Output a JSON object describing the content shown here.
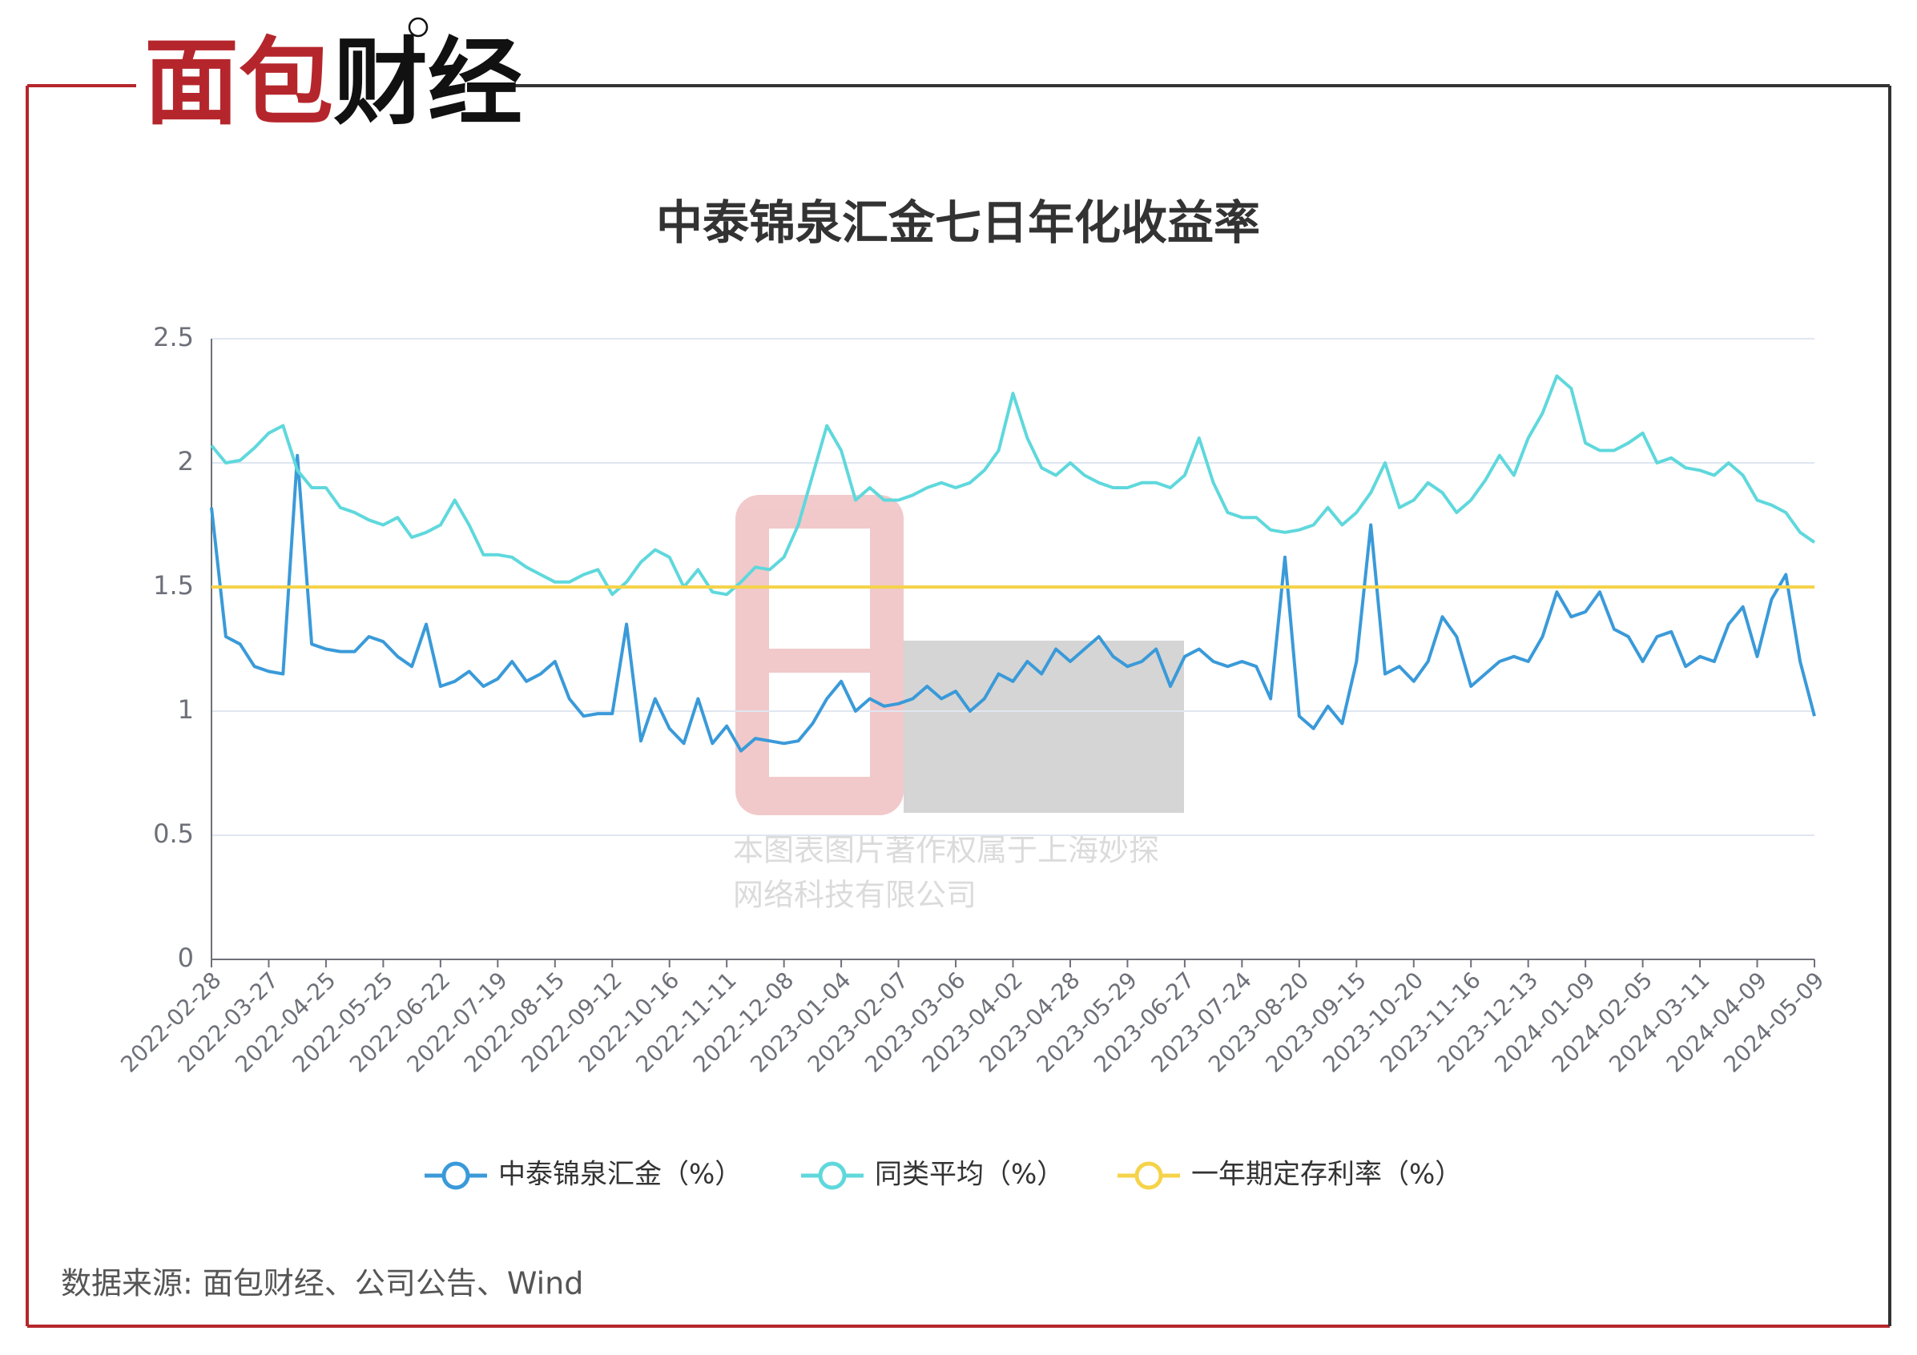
{
  "logo": [
    "面包",
    "财经"
  ],
  "watermark": [
    "本图表图片著作权属于上海妙探",
    "网络科技有限公司"
  ],
  "source": "数据来源: 面包财经、公司公告、Wind",
  "chart_data": {
    "type": "line",
    "title": "中泰锦泉汇金七日年化收益率",
    "categories": [
      "2022-02-28",
      null,
      null,
      null,
      "2022-03-27",
      null,
      null,
      null,
      "2022-04-25",
      null,
      null,
      null,
      "2022-05-25",
      null,
      null,
      null,
      "2022-06-22",
      null,
      null,
      null,
      "2022-07-19",
      null,
      null,
      null,
      "2022-08-15",
      null,
      null,
      null,
      "2022-09-12",
      null,
      null,
      null,
      "2022-10-16",
      null,
      null,
      null,
      "2022-11-11",
      null,
      null,
      null,
      "2022-12-08",
      null,
      null,
      null,
      "2023-01-04",
      null,
      null,
      null,
      "2023-02-07",
      null,
      null,
      null,
      "2023-03-06",
      null,
      null,
      null,
      "2023-04-02",
      null,
      null,
      null,
      "2023-04-28",
      null,
      null,
      null,
      "2023-05-29",
      null,
      null,
      null,
      "2023-06-27",
      null,
      null,
      null,
      "2023-07-24",
      null,
      null,
      null,
      "2023-08-20",
      null,
      null,
      null,
      "2023-09-15",
      null,
      null,
      null,
      "2023-10-20",
      null,
      null,
      null,
      "2023-11-16",
      null,
      null,
      null,
      "2023-12-13",
      null,
      null,
      null,
      "2024-01-09",
      null,
      null,
      null,
      "2024-02-05",
      null,
      null,
      null,
      "2024-03-11",
      null,
      null,
      null,
      "2024-04-09",
      null,
      null,
      null,
      "2024-05-09"
    ],
    "series": [
      {
        "name": "中泰锦泉汇金（%）",
        "color": "#3a9ad9",
        "values": [
          1.82,
          1.3,
          1.27,
          1.18,
          1.16,
          1.15,
          2.03,
          1.27,
          1.25,
          1.24,
          1.24,
          1.3,
          1.28,
          1.22,
          1.18,
          1.35,
          1.1,
          1.12,
          1.16,
          1.1,
          1.13,
          1.2,
          1.12,
          1.15,
          1.2,
          1.05,
          0.98,
          0.99,
          0.99,
          1.35,
          0.88,
          1.05,
          0.93,
          0.87,
          1.05,
          0.87,
          0.94,
          0.84,
          0.89,
          0.88,
          0.87,
          0.88,
          0.95,
          1.05,
          1.12,
          1.0,
          1.05,
          1.02,
          1.03,
          1.05,
          1.1,
          1.05,
          1.08,
          1.0,
          1.05,
          1.15,
          1.12,
          1.2,
          1.15,
          1.25,
          1.2,
          1.25,
          1.3,
          1.22,
          1.18,
          1.2,
          1.25,
          1.1,
          1.22,
          1.25,
          1.2,
          1.18,
          1.2,
          1.18,
          1.05,
          1.62,
          0.98,
          0.93,
          1.02,
          0.95,
          1.2,
          1.75,
          1.15,
          1.18,
          1.12,
          1.2,
          1.38,
          1.3,
          1.1,
          1.15,
          1.2,
          1.22,
          1.2,
          1.3,
          1.48,
          1.38,
          1.4,
          1.48,
          1.33,
          1.3,
          1.2,
          1.3,
          1.32,
          1.18,
          1.22,
          1.2,
          1.35,
          1.42,
          1.22,
          1.45,
          1.55,
          1.2,
          0.98
        ]
      },
      {
        "name": "同类平均（%）",
        "color": "#5fd8dc",
        "values": [
          2.07,
          2.0,
          2.01,
          2.06,
          2.12,
          2.15,
          1.97,
          1.9,
          1.9,
          1.82,
          1.8,
          1.77,
          1.75,
          1.78,
          1.7,
          1.72,
          1.75,
          1.85,
          1.75,
          1.63,
          1.63,
          1.62,
          1.58,
          1.55,
          1.52,
          1.52,
          1.55,
          1.57,
          1.47,
          1.52,
          1.6,
          1.65,
          1.62,
          1.5,
          1.57,
          1.48,
          1.47,
          1.52,
          1.58,
          1.57,
          1.62,
          1.75,
          1.95,
          2.15,
          2.05,
          1.85,
          1.9,
          1.85,
          1.85,
          1.87,
          1.9,
          1.92,
          1.9,
          1.92,
          1.97,
          2.05,
          2.28,
          2.1,
          1.98,
          1.95,
          2.0,
          1.95,
          1.92,
          1.9,
          1.9,
          1.92,
          1.92,
          1.9,
          1.95,
          2.1,
          1.92,
          1.8,
          1.78,
          1.78,
          1.73,
          1.72,
          1.73,
          1.75,
          1.82,
          1.75,
          1.8,
          1.88,
          2.0,
          1.82,
          1.85,
          1.92,
          1.88,
          1.8,
          1.85,
          1.93,
          2.03,
          1.95,
          2.1,
          2.2,
          2.35,
          2.3,
          2.08,
          2.05,
          2.05,
          2.08,
          2.12,
          2.0,
          2.02,
          1.98,
          1.97,
          1.95,
          2.0,
          1.95,
          1.85,
          1.83,
          1.8,
          1.72,
          1.68
        ]
      },
      {
        "name": "一年期定存利率（%）",
        "color": "#f5d34a",
        "values": [
          1.5,
          1.5,
          1.5,
          1.5,
          1.5,
          1.5,
          1.5,
          1.5,
          1.5,
          1.5,
          1.5,
          1.5,
          1.5,
          1.5,
          1.5,
          1.5,
          1.5,
          1.5,
          1.5,
          1.5,
          1.5,
          1.5,
          1.5,
          1.5,
          1.5,
          1.5,
          1.5,
          1.5,
          1.5,
          1.5,
          1.5,
          1.5,
          1.5,
          1.5,
          1.5,
          1.5,
          1.5,
          1.5,
          1.5,
          1.5,
          1.5,
          1.5,
          1.5,
          1.5,
          1.5,
          1.5,
          1.5,
          1.5,
          1.5,
          1.5,
          1.5,
          1.5,
          1.5,
          1.5,
          1.5,
          1.5,
          1.5,
          1.5,
          1.5,
          1.5,
          1.5,
          1.5,
          1.5,
          1.5,
          1.5,
          1.5,
          1.5,
          1.5,
          1.5,
          1.5,
          1.5,
          1.5,
          1.5,
          1.5,
          1.5,
          1.5,
          1.5,
          1.5,
          1.5,
          1.5,
          1.5,
          1.5,
          1.5,
          1.5,
          1.5,
          1.5,
          1.5,
          1.5,
          1.5,
          1.5,
          1.5,
          1.5,
          1.5,
          1.5,
          1.5,
          1.5,
          1.5,
          1.5,
          1.5,
          1.5,
          1.5,
          1.5,
          1.5,
          1.5,
          1.5,
          1.5,
          1.5,
          1.5,
          1.5,
          1.5,
          1.5,
          1.5,
          1.5
        ]
      }
    ],
    "ylim": [
      0,
      2.5
    ],
    "yticks": [
      0,
      0.5,
      1,
      1.5,
      2,
      2.5
    ],
    "grid": true,
    "legend": "bottom"
  }
}
